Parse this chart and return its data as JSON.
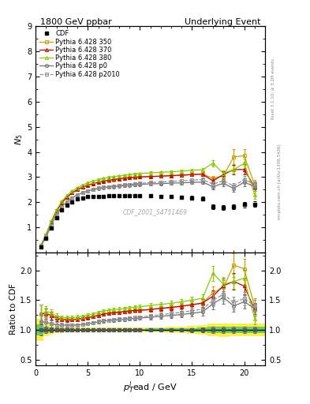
{
  "title_left": "1800 GeV ppbar",
  "title_right": "Underlying Event",
  "ylabel_main": "$N_5$",
  "ylabel_ratio": "Ratio to CDF",
  "xlabel": "$p_T^l$ead / GeV",
  "watermark": "CDF_2001_S4751469",
  "right_label": "mcplots.cern.ch [arXiv:1306.3436]",
  "right_label2": "Rivet 3.1.10; ≥ 3.2M events",
  "x_cdf": [
    0.5,
    1.0,
    1.5,
    2.0,
    2.5,
    3.0,
    3.5,
    4.0,
    4.5,
    5.0,
    5.5,
    6.0,
    6.5,
    7.0,
    7.5,
    8.0,
    8.5,
    9.0,
    9.5,
    10.0,
    11.0,
    12.0,
    13.0,
    14.0,
    15.0,
    16.0,
    17.0,
    18.0,
    19.0,
    20.0,
    21.0
  ],
  "y_cdf": [
    0.22,
    0.55,
    0.98,
    1.38,
    1.68,
    1.88,
    2.02,
    2.12,
    2.18,
    2.22,
    2.24,
    2.24,
    2.24,
    2.25,
    2.25,
    2.26,
    2.26,
    2.26,
    2.26,
    2.26,
    2.25,
    2.23,
    2.22,
    2.2,
    2.18,
    2.15,
    1.82,
    1.78,
    1.82,
    1.9,
    1.93
  ],
  "ye_cdf": [
    0.02,
    0.03,
    0.04,
    0.04,
    0.04,
    0.04,
    0.04,
    0.04,
    0.04,
    0.04,
    0.04,
    0.04,
    0.04,
    0.04,
    0.04,
    0.04,
    0.04,
    0.04,
    0.04,
    0.04,
    0.05,
    0.05,
    0.06,
    0.06,
    0.07,
    0.08,
    0.1,
    0.1,
    0.1,
    0.1,
    0.1
  ],
  "x_py": [
    0.5,
    1.0,
    1.5,
    2.0,
    2.5,
    3.0,
    3.5,
    4.0,
    4.5,
    5.0,
    5.5,
    6.0,
    6.5,
    7.0,
    7.5,
    8.0,
    8.5,
    9.0,
    9.5,
    10.0,
    11.0,
    12.0,
    13.0,
    14.0,
    15.0,
    16.0,
    17.0,
    18.0,
    19.0,
    20.0,
    21.0
  ],
  "y_350": [
    0.28,
    0.7,
    1.22,
    1.65,
    1.98,
    2.2,
    2.37,
    2.5,
    2.6,
    2.68,
    2.74,
    2.79,
    2.83,
    2.87,
    2.9,
    2.92,
    2.95,
    2.97,
    2.98,
    3.0,
    3.02,
    3.03,
    3.05,
    3.07,
    3.1,
    3.12,
    2.95,
    3.05,
    3.8,
    3.85,
    2.7
  ],
  "ye_350": [
    0.02,
    0.03,
    0.04,
    0.04,
    0.04,
    0.04,
    0.04,
    0.04,
    0.04,
    0.04,
    0.04,
    0.04,
    0.04,
    0.04,
    0.04,
    0.04,
    0.04,
    0.04,
    0.04,
    0.04,
    0.05,
    0.05,
    0.05,
    0.06,
    0.07,
    0.08,
    0.1,
    0.15,
    0.3,
    0.25,
    0.2
  ],
  "y_370": [
    0.28,
    0.7,
    1.22,
    1.65,
    1.98,
    2.2,
    2.37,
    2.5,
    2.6,
    2.68,
    2.74,
    2.79,
    2.84,
    2.88,
    2.91,
    2.93,
    2.96,
    2.98,
    3.0,
    3.01,
    3.02,
    3.04,
    3.06,
    3.08,
    3.1,
    3.12,
    2.85,
    3.1,
    3.3,
    3.3,
    2.6
  ],
  "ye_370": [
    0.02,
    0.03,
    0.04,
    0.04,
    0.04,
    0.04,
    0.04,
    0.04,
    0.04,
    0.04,
    0.04,
    0.04,
    0.04,
    0.04,
    0.04,
    0.04,
    0.04,
    0.04,
    0.04,
    0.04,
    0.05,
    0.05,
    0.05,
    0.06,
    0.07,
    0.08,
    0.1,
    0.12,
    0.18,
    0.2,
    0.15
  ],
  "y_380": [
    0.28,
    0.72,
    1.26,
    1.7,
    2.03,
    2.27,
    2.44,
    2.58,
    2.68,
    2.77,
    2.84,
    2.9,
    2.95,
    2.99,
    3.02,
    3.05,
    3.07,
    3.1,
    3.12,
    3.14,
    3.17,
    3.19,
    3.21,
    3.24,
    3.27,
    3.29,
    3.55,
    3.15,
    3.3,
    3.55,
    2.3
  ],
  "ye_380": [
    0.02,
    0.03,
    0.04,
    0.04,
    0.04,
    0.04,
    0.04,
    0.04,
    0.04,
    0.04,
    0.04,
    0.04,
    0.04,
    0.04,
    0.04,
    0.04,
    0.04,
    0.04,
    0.04,
    0.04,
    0.05,
    0.05,
    0.05,
    0.06,
    0.07,
    0.08,
    0.12,
    0.12,
    0.15,
    0.2,
    0.15
  ],
  "y_p0": [
    0.25,
    0.62,
    1.08,
    1.5,
    1.82,
    2.02,
    2.18,
    2.29,
    2.38,
    2.45,
    2.5,
    2.54,
    2.57,
    2.6,
    2.62,
    2.64,
    2.66,
    2.68,
    2.69,
    2.71,
    2.73,
    2.74,
    2.76,
    2.77,
    2.79,
    2.8,
    2.62,
    2.75,
    2.55,
    2.8,
    2.62
  ],
  "ye_p0": [
    0.02,
    0.03,
    0.04,
    0.04,
    0.04,
    0.04,
    0.04,
    0.04,
    0.04,
    0.04,
    0.04,
    0.04,
    0.04,
    0.04,
    0.04,
    0.04,
    0.04,
    0.04,
    0.04,
    0.04,
    0.05,
    0.05,
    0.05,
    0.06,
    0.06,
    0.07,
    0.1,
    0.1,
    0.12,
    0.15,
    0.12
  ],
  "y_p2010": [
    0.25,
    0.62,
    1.08,
    1.5,
    1.82,
    2.02,
    2.18,
    2.29,
    2.38,
    2.45,
    2.52,
    2.56,
    2.59,
    2.62,
    2.65,
    2.67,
    2.69,
    2.71,
    2.73,
    2.75,
    2.78,
    2.8,
    2.83,
    2.85,
    2.88,
    2.9,
    2.72,
    2.85,
    2.65,
    2.9,
    2.72
  ],
  "ye_p2010": [
    0.02,
    0.03,
    0.04,
    0.04,
    0.04,
    0.04,
    0.04,
    0.04,
    0.04,
    0.04,
    0.04,
    0.04,
    0.04,
    0.04,
    0.04,
    0.04,
    0.04,
    0.04,
    0.04,
    0.04,
    0.05,
    0.05,
    0.05,
    0.06,
    0.06,
    0.07,
    0.1,
    0.1,
    0.12,
    0.15,
    0.12
  ],
  "color_350": "#c8a000",
  "color_370": "#cc0000",
  "color_380": "#88cc00",
  "color_p0": "#707070",
  "color_p2010": "#909090",
  "color_cdf": "#000000",
  "ylim_main": [
    0,
    9
  ],
  "ylim_ratio": [
    0.4,
    2.3
  ],
  "xlim": [
    0,
    22
  ],
  "yticks_main": [
    1,
    2,
    3,
    4,
    5,
    6,
    7,
    8,
    9
  ],
  "yticks_ratio": [
    0.5,
    1.0,
    1.5,
    2.0
  ],
  "xticks": [
    0,
    5,
    10,
    15,
    20
  ]
}
